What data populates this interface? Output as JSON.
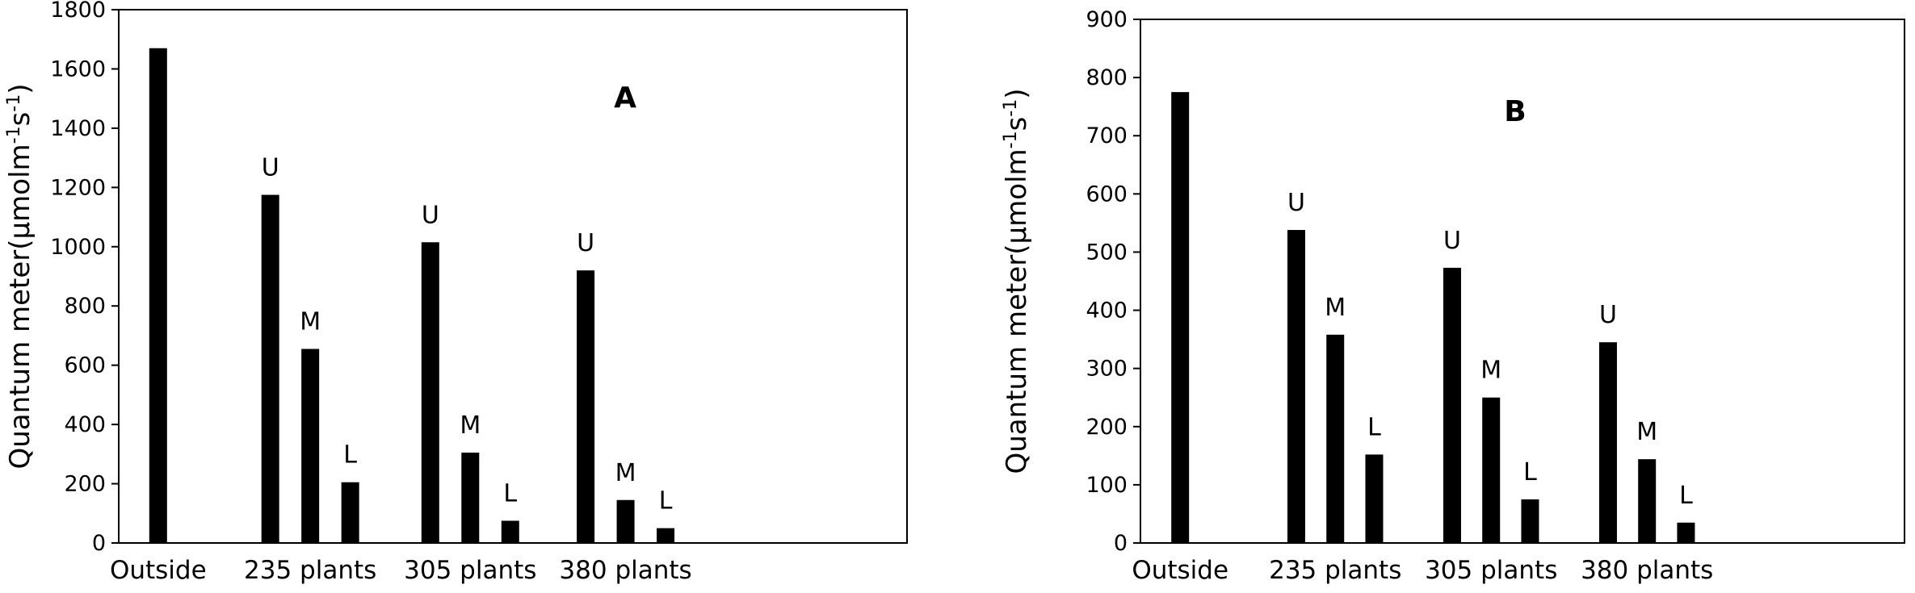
{
  "chart_data": [
    {
      "type": "bar",
      "title": "",
      "panel_label": "A",
      "ylabel": "Quantum meter(μmolm-1s-1)",
      "ylim": [
        0,
        1800
      ],
      "yticks": [
        0,
        200,
        400,
        600,
        800,
        1000,
        1200,
        1400,
        1600,
        1800
      ],
      "groups": [
        {
          "label": "Outside",
          "bars": [
            {
              "label": "",
              "value": 1670
            }
          ]
        },
        {
          "label": "235 plants",
          "bars": [
            {
              "label": "U",
              "value": 1175
            },
            {
              "label": "M",
              "value": 655
            },
            {
              "label": "L",
              "value": 205
            }
          ]
        },
        {
          "label": "305 plants",
          "bars": [
            {
              "label": "U",
              "value": 1015
            },
            {
              "label": "M",
              "value": 305
            },
            {
              "label": "L",
              "value": 75
            }
          ]
        },
        {
          "label": "380 plants",
          "bars": [
            {
              "label": "U",
              "value": 920
            },
            {
              "label": "M",
              "value": 145
            },
            {
              "label": "L",
              "value": 50
            }
          ]
        }
      ]
    },
    {
      "type": "bar",
      "title": "",
      "panel_label": "B",
      "ylabel": "Quantum meter(μmolm-1s-1)",
      "ylim": [
        0,
        900
      ],
      "yticks": [
        0,
        100,
        200,
        300,
        400,
        500,
        600,
        700,
        800,
        900
      ],
      "groups": [
        {
          "label": "Outside",
          "bars": [
            {
              "label": "",
              "value": 775
            }
          ]
        },
        {
          "label": "235 plants",
          "bars": [
            {
              "label": "U",
              "value": 538
            },
            {
              "label": "M",
              "value": 358
            },
            {
              "label": "L",
              "value": 152
            }
          ]
        },
        {
          "label": "305 plants",
          "bars": [
            {
              "label": "U",
              "value": 473
            },
            {
              "label": "M",
              "value": 250
            },
            {
              "label": "L",
              "value": 75
            }
          ]
        },
        {
          "label": "380 plants",
          "bars": [
            {
              "label": "U",
              "value": 345
            },
            {
              "label": "M",
              "value": 144
            },
            {
              "label": "L",
              "value": 35
            }
          ]
        }
      ]
    }
  ]
}
